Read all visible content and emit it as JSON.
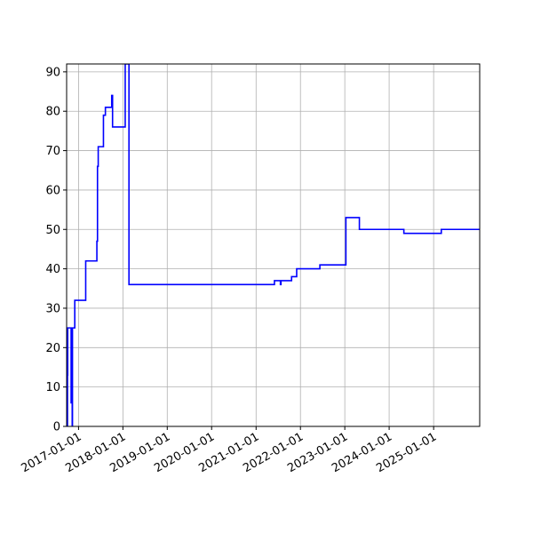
{
  "chart_data": {
    "type": "line",
    "title": "",
    "xlabel": "",
    "ylabel": "",
    "grid": true,
    "x_scale": "date",
    "xlim": [
      "2016-09-25",
      "2026-01-15"
    ],
    "ylim": [
      0,
      92
    ],
    "x_ticks": [
      "2017-01-01",
      "2018-01-01",
      "2019-01-01",
      "2020-01-01",
      "2021-01-01",
      "2022-01-01",
      "2023-01-01",
      "2024-01-01",
      "2025-01-01"
    ],
    "y_ticks": [
      0,
      10,
      20,
      30,
      40,
      50,
      60,
      70,
      80,
      90
    ],
    "series": [
      {
        "color": "#0000ff",
        "step": "post",
        "points": [
          [
            "2016-10-01",
            0
          ],
          [
            "2016-10-02",
            13
          ],
          [
            "2016-10-04",
            25
          ],
          [
            "2016-11-01",
            6
          ],
          [
            "2016-11-10",
            0
          ],
          [
            "2016-11-12",
            25
          ],
          [
            "2016-12-01",
            32
          ],
          [
            "2017-03-01",
            42
          ],
          [
            "2017-06-01",
            47
          ],
          [
            "2017-06-06",
            66
          ],
          [
            "2017-06-12",
            71
          ],
          [
            "2017-07-25",
            79
          ],
          [
            "2017-08-10",
            81
          ],
          [
            "2017-10-01",
            84
          ],
          [
            "2017-10-08",
            76
          ],
          [
            "2018-01-20",
            92
          ],
          [
            "2018-02-20",
            36
          ],
          [
            "2021-06-01",
            37
          ],
          [
            "2021-07-20",
            36
          ],
          [
            "2021-07-25",
            37
          ],
          [
            "2021-10-20",
            38
          ],
          [
            "2021-12-01",
            40
          ],
          [
            "2022-06-10",
            41
          ],
          [
            "2023-01-10",
            53
          ],
          [
            "2023-05-01",
            50
          ],
          [
            "2024-05-01",
            49
          ],
          [
            "2025-03-05",
            50
          ],
          [
            "2025-06-10",
            50
          ]
        ]
      }
    ]
  }
}
